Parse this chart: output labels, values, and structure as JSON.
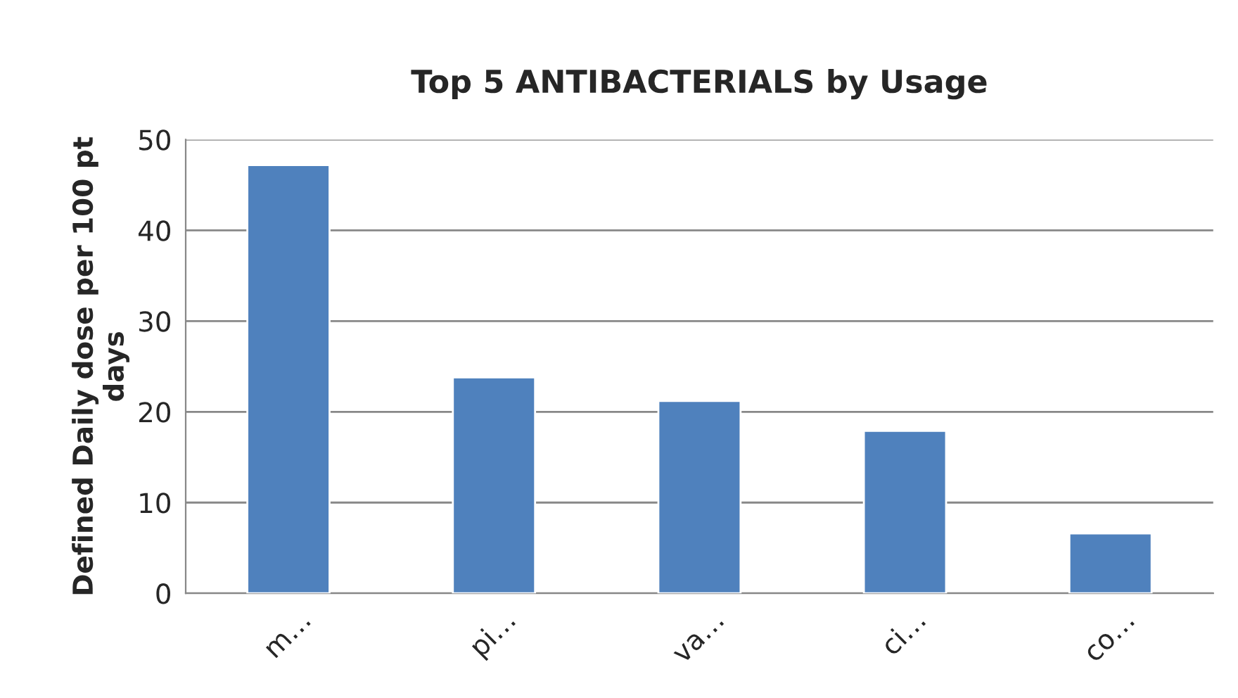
{
  "chart_data": {
    "type": "bar",
    "title": "Top 5 ANTIBACTERIALS by Usage",
    "ylabel": "Defined Daily dose per 100 pt\ndays",
    "categories": [
      "m…",
      "pi…",
      "va…",
      "ci…",
      "co…"
    ],
    "values": [
      47.2,
      23.8,
      21.2,
      17.9,
      6.6
    ],
    "color": "#4f81bd",
    "ylim": [
      0,
      50
    ],
    "yticks": [
      0,
      10,
      20,
      30,
      40,
      50
    ],
    "grid": "y",
    "legend": false
  }
}
